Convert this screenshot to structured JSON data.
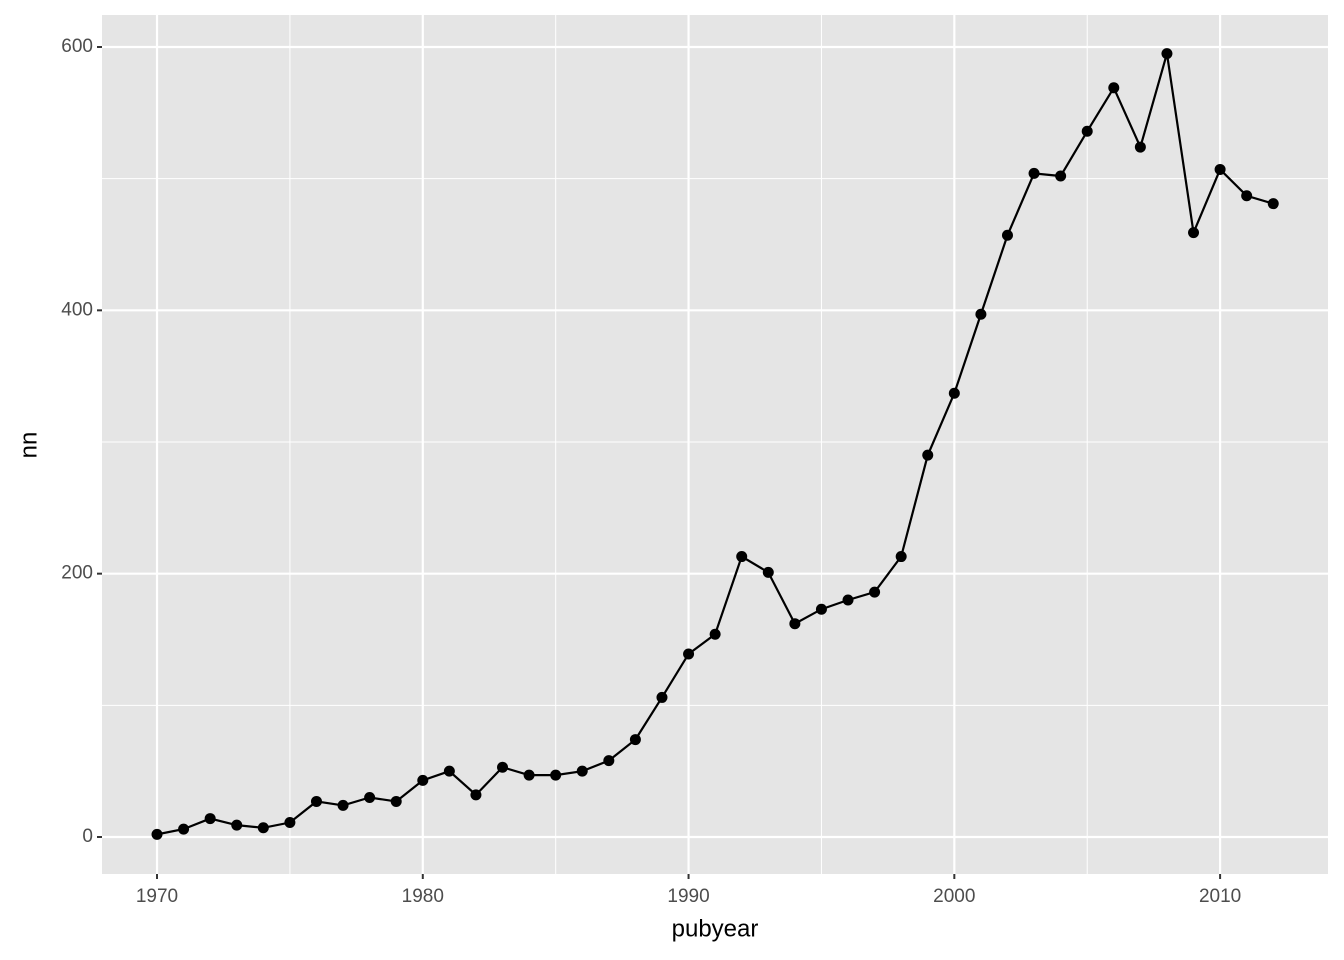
{
  "chart_data": {
    "type": "line",
    "x_label": "pubyear",
    "y_label": "nn",
    "x": [
      1970,
      1971,
      1972,
      1973,
      1974,
      1975,
      1976,
      1977,
      1978,
      1979,
      1980,
      1981,
      1982,
      1983,
      1984,
      1985,
      1986,
      1987,
      1988,
      1989,
      1990,
      1991,
      1992,
      1993,
      1994,
      1995,
      1996,
      1997,
      1998,
      1999,
      2000,
      2001,
      2002,
      2003,
      2004,
      2005,
      2006,
      2007,
      2008,
      2009,
      2010,
      2011,
      2012
    ],
    "series": [
      {
        "color": "#000000",
        "values": [
          2,
          6,
          14,
          9,
          7,
          11,
          27,
          24,
          30,
          27,
          43,
          50,
          32,
          53,
          47,
          47,
          50,
          58,
          74,
          106,
          139,
          154,
          213,
          201,
          162,
          173,
          180,
          186,
          213,
          290,
          337,
          397,
          457,
          504,
          502,
          536,
          569,
          524,
          595,
          459,
          507,
          487,
          481
        ]
      }
    ],
    "xlim": [
      1967.93,
      2014.06
    ],
    "ylim": [
      -28.1,
      624.3
    ],
    "xticks": [
      1970,
      1980,
      1990,
      2000,
      2010
    ],
    "yticks": [
      0,
      200,
      400,
      600
    ],
    "x_minor_ticks": [
      1975,
      1985,
      1995,
      2005
    ],
    "y_minor_ticks": [
      100,
      300,
      500
    ],
    "grid": true,
    "background": "#e5e5e5"
  }
}
